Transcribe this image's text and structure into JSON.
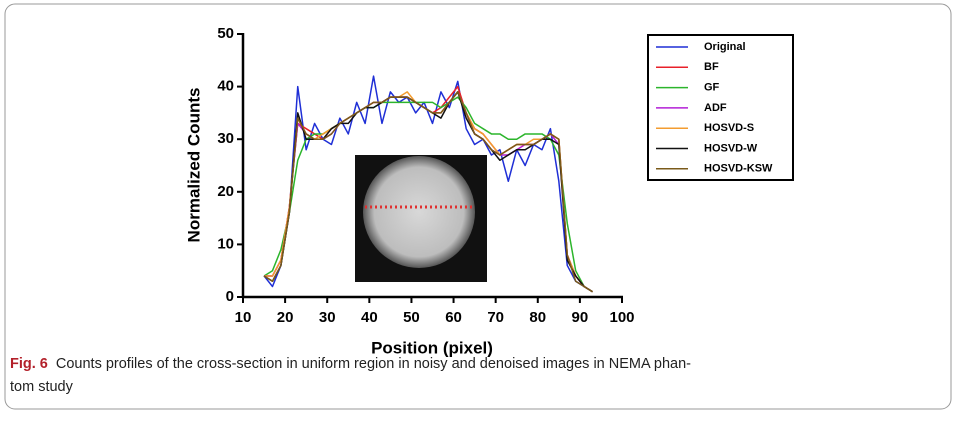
{
  "chart_data": {
    "type": "line",
    "xlabel": "Position (pixel)",
    "ylabel": "Normalized Counts",
    "x": [
      15,
      17,
      19,
      21,
      23,
      25,
      27,
      29,
      31,
      33,
      35,
      37,
      39,
      41,
      43,
      45,
      47,
      49,
      51,
      53,
      55,
      57,
      59,
      61,
      63,
      65,
      67,
      69,
      71,
      73,
      75,
      77,
      79,
      81,
      83,
      85,
      87,
      89,
      91,
      93
    ],
    "series": [
      {
        "name": "Original",
        "color": "#1f2fd6",
        "values": [
          4,
          2,
          6,
          16,
          40,
          28,
          33,
          30,
          29,
          34,
          31,
          37,
          33,
          42,
          33,
          39,
          37,
          38,
          35,
          37,
          33,
          39,
          36,
          41,
          32,
          29,
          30,
          27,
          28,
          22,
          28,
          25,
          29,
          28,
          32,
          22,
          6,
          3,
          2,
          1
        ]
      },
      {
        "name": "BF",
        "color": "#e8202a",
        "values": [
          4,
          4,
          7,
          17,
          33,
          32,
          31,
          30,
          32,
          33,
          34,
          35,
          36,
          37,
          37,
          38,
          38,
          38,
          37,
          36,
          35,
          36,
          38,
          40,
          35,
          32,
          31,
          29,
          27,
          28,
          29,
          29,
          29,
          30,
          31,
          30,
          8,
          4,
          2,
          1
        ]
      },
      {
        "name": "GF",
        "color": "#2cb52c",
        "values": [
          4,
          5,
          9,
          16,
          26,
          30,
          31,
          31,
          32,
          33,
          34,
          35,
          36,
          36,
          37,
          37,
          37,
          37,
          37,
          37,
          37,
          36,
          37,
          38,
          36,
          33,
          32,
          31,
          31,
          30,
          30,
          31,
          31,
          31,
          30,
          27,
          14,
          5,
          2,
          1
        ]
      },
      {
        "name": "ADF",
        "color": "#b31fd6",
        "values": [
          4,
          4,
          7,
          17,
          33,
          31,
          30,
          30,
          31,
          33,
          34,
          35,
          36,
          37,
          37,
          38,
          38,
          38,
          37,
          36,
          35,
          35,
          37,
          39,
          35,
          31,
          30,
          28,
          27,
          27,
          28,
          29,
          29,
          30,
          31,
          29,
          8,
          4,
          2,
          1
        ]
      },
      {
        "name": "HOSVD-S",
        "color": "#f39c30",
        "values": [
          4,
          4,
          7,
          17,
          34,
          31,
          30,
          31,
          32,
          33,
          34,
          35,
          36,
          37,
          37,
          38,
          38,
          39,
          37,
          36,
          35,
          35,
          37,
          39,
          35,
          32,
          31,
          29,
          27,
          28,
          29,
          29,
          30,
          30,
          31,
          30,
          8,
          4,
          2,
          1
        ]
      },
      {
        "name": "HOSVD-W",
        "color": "#111111",
        "values": [
          4,
          3,
          6,
          16,
          35,
          30,
          30,
          30,
          32,
          33,
          33,
          35,
          36,
          36,
          37,
          38,
          38,
          38,
          37,
          36,
          35,
          34,
          37,
          39,
          34,
          31,
          30,
          28,
          26,
          27,
          28,
          28,
          29,
          30,
          30,
          29,
          7,
          4,
          2,
          1
        ]
      },
      {
        "name": "HOSVD-KSW",
        "color": "#7a5a1a",
        "values": [
          4,
          3,
          6,
          16,
          34,
          31,
          30,
          30,
          31,
          33,
          34,
          35,
          36,
          37,
          37,
          38,
          38,
          38,
          37,
          36,
          35,
          35,
          37,
          39,
          35,
          31,
          30,
          28,
          27,
          28,
          29,
          29,
          29,
          30,
          31,
          30,
          8,
          3,
          2,
          1
        ]
      }
    ],
    "xlim": [
      10,
      100
    ],
    "ylim": [
      0,
      50
    ],
    "xticks": [
      10,
      20,
      30,
      40,
      50,
      60,
      70,
      80,
      90,
      100
    ],
    "yticks": [
      0,
      10,
      20,
      30,
      40,
      50
    ],
    "grid": false,
    "legend": "outside-right"
  },
  "caption": {
    "label": "Fig. 6",
    "lines": [
      "Counts profiles of the cross-section in uniform region in noisy and denoised images in NEMA phan-",
      "tom study"
    ]
  }
}
